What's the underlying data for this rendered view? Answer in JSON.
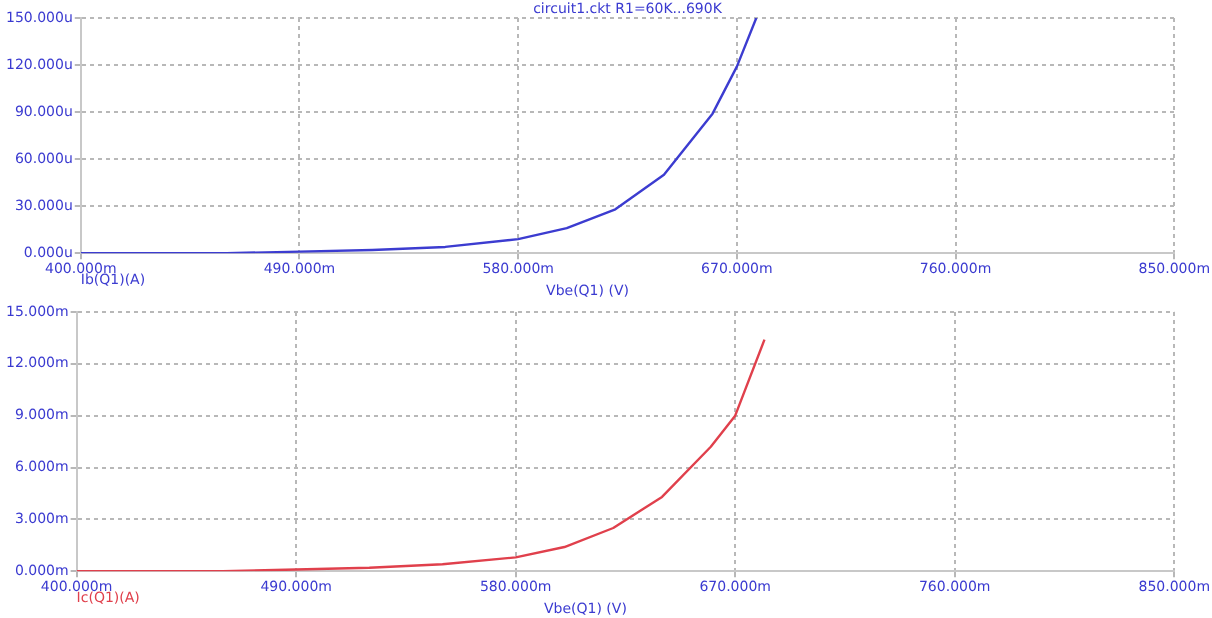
{
  "chart_data": [
    {
      "type": "line",
      "title": "circuit1.ckt R1=60K...690K",
      "xlabel": "Vbe(Q1) (V)",
      "grid": true,
      "legend": "bottom left",
      "marker": "none",
      "line_style": "solid",
      "xlim": [
        400,
        850
      ],
      "xticks": [
        {
          "value": 400,
          "label": "400.000m"
        },
        {
          "value": 490,
          "label": "490.000m"
        },
        {
          "value": 580,
          "label": "580.000m"
        },
        {
          "value": 670,
          "label": "670.000m"
        },
        {
          "value": 760,
          "label": "760.000m"
        },
        {
          "value": 850,
          "label": "850.000m"
        }
      ],
      "ylim": [
        0,
        150
      ],
      "yticks": [
        {
          "value": 0,
          "label": "0.000u"
        },
        {
          "value": 30,
          "label": "30.000u"
        },
        {
          "value": 60,
          "label": "60.000u"
        },
        {
          "value": 90,
          "label": "90.000u"
        },
        {
          "value": 120,
          "label": "120.000u"
        },
        {
          "value": 150,
          "label": "150.000u"
        }
      ],
      "x": [
        400,
        430,
        460,
        490,
        520,
        550,
        580,
        600,
        620,
        640,
        660,
        670,
        678
      ],
      "series": [
        {
          "name": "Ib(Q1)(A)",
          "color": "#3c3cd0",
          "values": [
            0,
            0,
            0,
            1,
            2,
            4,
            9,
            16,
            28,
            50,
            89,
            119,
            150
          ]
        }
      ]
    },
    {
      "type": "line",
      "xlabel": "Vbe(Q1) (V)",
      "grid": true,
      "legend": "bottom left",
      "marker": "none",
      "line_style": "solid",
      "xlim": [
        400,
        850
      ],
      "xticks": [
        {
          "value": 400,
          "label": "400.000m"
        },
        {
          "value": 490,
          "label": "490.000m"
        },
        {
          "value": 580,
          "label": "580.000m"
        },
        {
          "value": 670,
          "label": "670.000m"
        },
        {
          "value": 760,
          "label": "760.000m"
        },
        {
          "value": 850,
          "label": "850.000m"
        }
      ],
      "ylim": [
        0,
        15
      ],
      "yticks": [
        {
          "value": 0,
          "label": "0.000m"
        },
        {
          "value": 3,
          "label": "3.000m"
        },
        {
          "value": 6,
          "label": "6.000m"
        },
        {
          "value": 9,
          "label": "9.000m"
        },
        {
          "value": 12,
          "label": "12.000m"
        },
        {
          "value": 15,
          "label": "15.000m"
        }
      ],
      "x": [
        400,
        430,
        460,
        490,
        520,
        550,
        580,
        600,
        620,
        640,
        660,
        670,
        682
      ],
      "series": [
        {
          "name": "Ic(Q1)(A)",
          "color": "#e0404c",
          "values": [
            0,
            0,
            0,
            0.1,
            0.2,
            0.4,
            0.8,
            1.4,
            2.5,
            4.3,
            7.2,
            9.0,
            13.4
          ]
        }
      ]
    }
  ]
}
